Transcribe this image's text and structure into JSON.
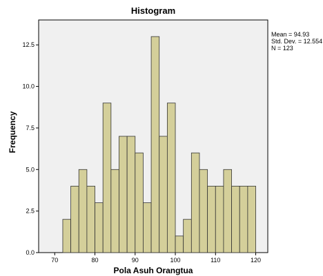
{
  "chart_data": {
    "type": "bar",
    "title": "Histogram",
    "xlabel": "Pola Asuh Orangtua",
    "ylabel": "Frequency",
    "xlim": [
      66,
      123
    ],
    "ylim": [
      0,
      14
    ],
    "bin_width": 2,
    "bin_centers": [
      73,
      75,
      77,
      79,
      81,
      83,
      85,
      87,
      89,
      91,
      93,
      95,
      97,
      99,
      101,
      103,
      105,
      107,
      109,
      111,
      113,
      115,
      117,
      119
    ],
    "values": [
      2,
      4,
      5,
      4,
      3,
      9,
      5,
      7,
      7,
      6,
      3,
      13,
      7,
      9,
      1,
      2,
      6,
      5,
      4,
      4,
      5,
      4,
      4,
      4
    ],
    "x_ticks": [
      70,
      80,
      90,
      100,
      110,
      120
    ],
    "y_ticks": [
      "0.0",
      "2.5",
      "5.0",
      "7.5",
      "10.0",
      "12.5"
    ],
    "y_tick_values": [
      0,
      2.5,
      5,
      7.5,
      10,
      12.5
    ],
    "stats": {
      "mean": "Mean = 94.93",
      "std_dev": "Std. Dev. = 12.554",
      "n": "N = 123"
    },
    "colors": {
      "plot_background": "#f0f0f0",
      "bar_fill": "#d4cf9a",
      "bar_stroke": "#333333",
      "axis": "#000000"
    },
    "grid": false,
    "legend": "none"
  }
}
